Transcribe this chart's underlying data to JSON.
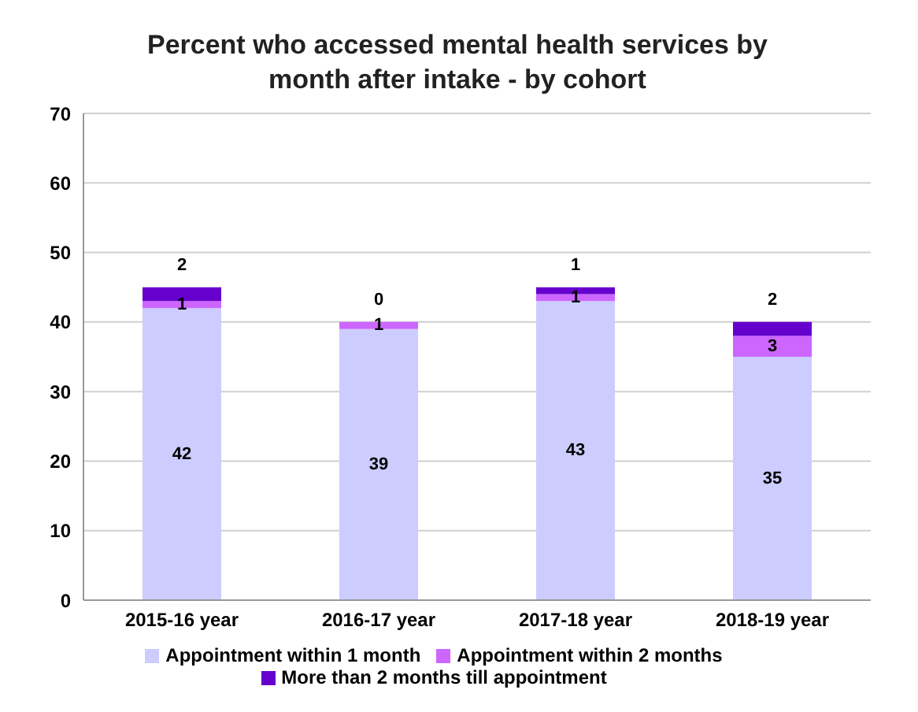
{
  "chart_data": {
    "type": "bar",
    "title": "Percent who accessed mental health services by month after intake - by cohort",
    "categories": [
      "2015-16 year",
      "2016-17 year",
      "2017-18 year",
      "2018-19 year"
    ],
    "stacked": true,
    "series": [
      {
        "name": "Appointment within 1 month",
        "color": "#ccccff",
        "values": [
          42,
          39,
          43,
          35
        ]
      },
      {
        "name": "Appointment within 2 months",
        "color": "#cc66ff",
        "values": [
          1,
          1,
          1,
          3
        ]
      },
      {
        "name": "More than 2 months till appointment",
        "color": "#6600cc",
        "values": [
          2,
          0,
          1,
          2
        ]
      }
    ],
    "ylim": [
      0,
      70
    ],
    "yticks": [
      0,
      10,
      20,
      30,
      40,
      50,
      60,
      70
    ],
    "grid": "y",
    "legend": "bottom",
    "data_labels": true
  }
}
